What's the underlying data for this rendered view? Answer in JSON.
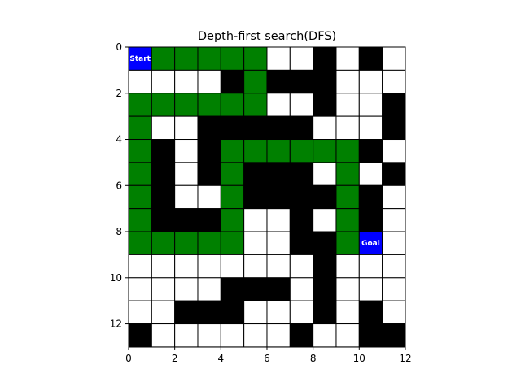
{
  "chart_data": {
    "type": "heatmap",
    "title": "Depth-first search(DFS)",
    "xlabel": "",
    "ylabel": "",
    "rows": 13,
    "cols": 12,
    "xlim": [
      0,
      12
    ],
    "ylim": [
      13,
      0
    ],
    "x_ticks": [
      0,
      2,
      4,
      6,
      8,
      10,
      12
    ],
    "y_ticks": [
      0,
      2,
      4,
      6,
      8,
      10,
      12
    ],
    "legend": "none",
    "colors": {
      "E": "#ffffff",
      "W": "#000000",
      "P": "#008000",
      "S": "#0000ff",
      "G": "#0000ff"
    },
    "cell_edge_color": "#000000",
    "grid": [
      [
        "S",
        "P",
        "P",
        "P",
        "P",
        "P",
        "E",
        "E",
        "W",
        "E",
        "W",
        "E"
      ],
      [
        "E",
        "E",
        "E",
        "E",
        "W",
        "P",
        "W",
        "W",
        "W",
        "E",
        "E",
        "E"
      ],
      [
        "P",
        "P",
        "P",
        "P",
        "P",
        "P",
        "E",
        "E",
        "W",
        "E",
        "E",
        "W"
      ],
      [
        "P",
        "E",
        "E",
        "W",
        "W",
        "W",
        "W",
        "W",
        "E",
        "E",
        "E",
        "W"
      ],
      [
        "P",
        "W",
        "E",
        "W",
        "P",
        "P",
        "P",
        "P",
        "P",
        "P",
        "W",
        "E"
      ],
      [
        "P",
        "W",
        "E",
        "W",
        "P",
        "W",
        "W",
        "W",
        "E",
        "P",
        "E",
        "W"
      ],
      [
        "P",
        "W",
        "E",
        "E",
        "P",
        "W",
        "W",
        "W",
        "W",
        "P",
        "W",
        "E"
      ],
      [
        "P",
        "W",
        "W",
        "W",
        "P",
        "E",
        "E",
        "W",
        "E",
        "P",
        "W",
        "E"
      ],
      [
        "P",
        "P",
        "P",
        "P",
        "P",
        "E",
        "E",
        "W",
        "W",
        "P",
        "G",
        "E"
      ],
      [
        "E",
        "E",
        "E",
        "E",
        "E",
        "E",
        "E",
        "E",
        "W",
        "E",
        "E",
        "E"
      ],
      [
        "E",
        "E",
        "E",
        "E",
        "W",
        "W",
        "W",
        "E",
        "W",
        "E",
        "E",
        "E"
      ],
      [
        "E",
        "E",
        "W",
        "W",
        "W",
        "E",
        "E",
        "E",
        "W",
        "E",
        "W",
        "E"
      ],
      [
        "W",
        "E",
        "E",
        "E",
        "E",
        "E",
        "E",
        "W",
        "E",
        "E",
        "W",
        "W"
      ]
    ],
    "annotations": [
      {
        "row": 0,
        "col": 0,
        "text": "Start"
      },
      {
        "row": 8,
        "col": 10,
        "text": "Goal"
      }
    ]
  }
}
